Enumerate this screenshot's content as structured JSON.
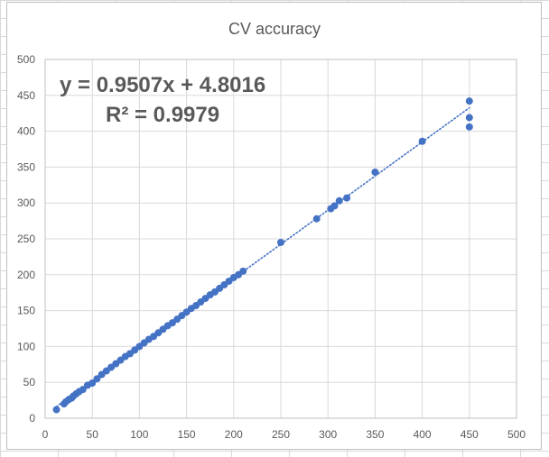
{
  "chart_data": {
    "type": "scatter",
    "title": "CV accuracy",
    "xlabel": "",
    "ylabel": "",
    "xlim": [
      0,
      500
    ],
    "ylim": [
      0,
      500
    ],
    "x_ticks": [
      "0",
      "50",
      "100",
      "150",
      "200",
      "250",
      "300",
      "350",
      "400",
      "450",
      "500"
    ],
    "y_ticks": [
      "0",
      "50",
      "100",
      "150",
      "200",
      "250",
      "300",
      "350",
      "400",
      "450",
      "500"
    ],
    "grid": true,
    "legend": "none",
    "marker_color": "#4472c4",
    "trendline": {
      "type": "linear",
      "slope": 0.9507,
      "intercept": 4.8016,
      "x_range": [
        12,
        450
      ],
      "style": "dotted",
      "color": "#4472c4",
      "equation_label": "y = 0.9507x + 4.8016",
      "r2_label": "R² = 0.9979"
    },
    "points": [
      {
        "x": 12,
        "y": 12
      },
      {
        "x": 20,
        "y": 20
      },
      {
        "x": 22,
        "y": 23
      },
      {
        "x": 25,
        "y": 26
      },
      {
        "x": 28,
        "y": 28
      },
      {
        "x": 30,
        "y": 31
      },
      {
        "x": 33,
        "y": 34
      },
      {
        "x": 36,
        "y": 37
      },
      {
        "x": 40,
        "y": 40
      },
      {
        "x": 45,
        "y": 46
      },
      {
        "x": 50,
        "y": 49
      },
      {
        "x": 55,
        "y": 55
      },
      {
        "x": 60,
        "y": 61
      },
      {
        "x": 65,
        "y": 66
      },
      {
        "x": 70,
        "y": 71
      },
      {
        "x": 75,
        "y": 76
      },
      {
        "x": 80,
        "y": 81
      },
      {
        "x": 85,
        "y": 86
      },
      {
        "x": 90,
        "y": 90
      },
      {
        "x": 95,
        "y": 95
      },
      {
        "x": 100,
        "y": 100
      },
      {
        "x": 105,
        "y": 105
      },
      {
        "x": 110,
        "y": 110
      },
      {
        "x": 115,
        "y": 114
      },
      {
        "x": 120,
        "y": 119
      },
      {
        "x": 125,
        "y": 124
      },
      {
        "x": 130,
        "y": 129
      },
      {
        "x": 135,
        "y": 133
      },
      {
        "x": 140,
        "y": 138
      },
      {
        "x": 145,
        "y": 143
      },
      {
        "x": 150,
        "y": 148
      },
      {
        "x": 155,
        "y": 153
      },
      {
        "x": 160,
        "y": 157
      },
      {
        "x": 165,
        "y": 162
      },
      {
        "x": 170,
        "y": 167
      },
      {
        "x": 175,
        "y": 172
      },
      {
        "x": 180,
        "y": 176
      },
      {
        "x": 185,
        "y": 181
      },
      {
        "x": 190,
        "y": 186
      },
      {
        "x": 195,
        "y": 191
      },
      {
        "x": 200,
        "y": 196
      },
      {
        "x": 205,
        "y": 200
      },
      {
        "x": 210,
        "y": 205
      },
      {
        "x": 250,
        "y": 245
      },
      {
        "x": 288,
        "y": 278
      },
      {
        "x": 303,
        "y": 292
      },
      {
        "x": 307,
        "y": 296
      },
      {
        "x": 312,
        "y": 303
      },
      {
        "x": 320,
        "y": 307
      },
      {
        "x": 350,
        "y": 343
      },
      {
        "x": 400,
        "y": 386
      },
      {
        "x": 450,
        "y": 442
      },
      {
        "x": 450,
        "y": 419
      },
      {
        "x": 450,
        "y": 406
      }
    ]
  }
}
